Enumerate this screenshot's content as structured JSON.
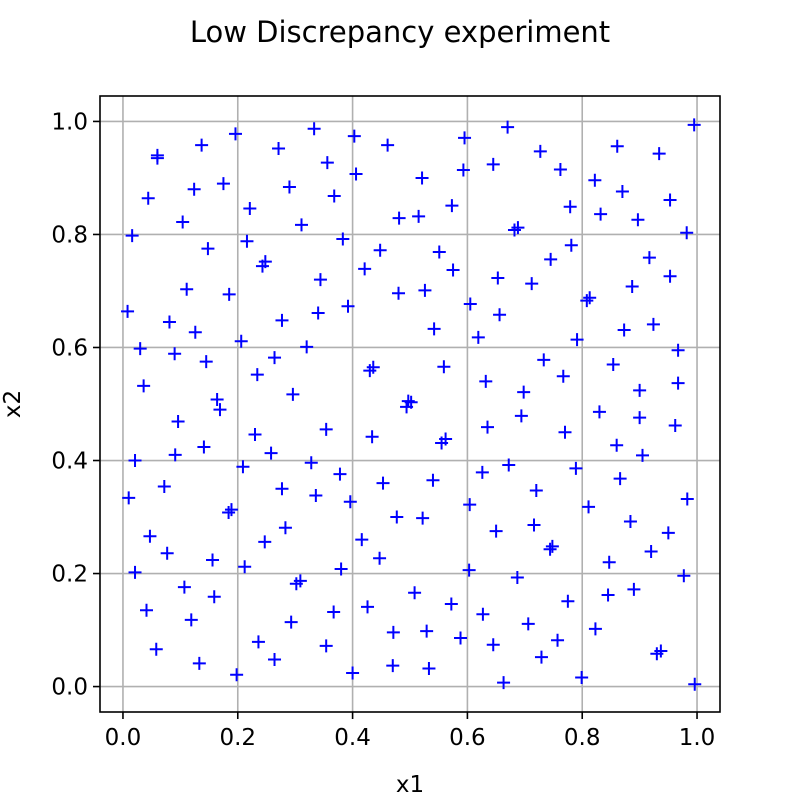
{
  "chart_data": {
    "type": "scatter",
    "title": "Low Discrepancy experiment",
    "xlabel": "x1",
    "ylabel": "x2",
    "xlim": [
      -0.04,
      1.04
    ],
    "ylim": [
      -0.045,
      1.045
    ],
    "xticks": [
      0.0,
      0.2,
      0.4,
      0.6,
      0.8,
      1.0
    ],
    "yticks": [
      0.0,
      0.2,
      0.4,
      0.6,
      0.8,
      1.0
    ],
    "xtick_labels": [
      "0.0",
      "0.2",
      "0.4",
      "0.6",
      "0.8",
      "1.0"
    ],
    "ytick_labels": [
      "0.0",
      "0.2",
      "0.4",
      "0.6",
      "0.8",
      "1.0"
    ],
    "grid": true,
    "marker": "+",
    "color": "#0000ff",
    "points": [
      [
        0.06,
        0.935
      ],
      [
        0.06,
        0.94
      ],
      [
        0.137,
        0.958
      ],
      [
        0.196,
        0.978
      ],
      [
        0.271,
        0.952
      ],
      [
        0.333,
        0.987
      ],
      [
        0.403,
        0.974
      ],
      [
        0.461,
        0.958
      ],
      [
        0.595,
        0.971
      ],
      [
        0.67,
        0.99
      ],
      [
        0.727,
        0.947
      ],
      [
        0.762,
        0.915
      ],
      [
        0.861,
        0.956
      ],
      [
        0.934,
        0.943
      ],
      [
        0.995,
        0.994
      ],
      [
        0.044,
        0.864
      ],
      [
        0.124,
        0.88
      ],
      [
        0.175,
        0.89
      ],
      [
        0.29,
        0.884
      ],
      [
        0.356,
        0.927
      ],
      [
        0.406,
        0.907
      ],
      [
        0.521,
        0.9
      ],
      [
        0.593,
        0.914
      ],
      [
        0.645,
        0.924
      ],
      [
        0.822,
        0.896
      ],
      [
        0.87,
        0.876
      ],
      [
        0.953,
        0.861
      ],
      [
        0.016,
        0.798
      ],
      [
        0.104,
        0.822
      ],
      [
        0.221,
        0.846
      ],
      [
        0.311,
        0.817
      ],
      [
        0.368,
        0.868
      ],
      [
        0.481,
        0.829
      ],
      [
        0.515,
        0.832
      ],
      [
        0.573,
        0.851
      ],
      [
        0.682,
        0.808
      ],
      [
        0.688,
        0.812
      ],
      [
        0.779,
        0.849
      ],
      [
        0.832,
        0.836
      ],
      [
        0.897,
        0.826
      ],
      [
        0.982,
        0.803
      ],
      [
        0.148,
        0.775
      ],
      [
        0.216,
        0.788
      ],
      [
        0.243,
        0.744
      ],
      [
        0.248,
        0.752
      ],
      [
        0.344,
        0.72
      ],
      [
        0.383,
        0.792
      ],
      [
        0.421,
        0.739
      ],
      [
        0.448,
        0.772
      ],
      [
        0.551,
        0.769
      ],
      [
        0.575,
        0.737
      ],
      [
        0.653,
        0.723
      ],
      [
        0.712,
        0.713
      ],
      [
        0.745,
        0.756
      ],
      [
        0.781,
        0.781
      ],
      [
        0.917,
        0.759
      ],
      [
        0.953,
        0.726
      ],
      [
        0.008,
        0.664
      ],
      [
        0.111,
        0.703
      ],
      [
        0.081,
        0.645
      ],
      [
        0.126,
        0.627
      ],
      [
        0.185,
        0.694
      ],
      [
        0.277,
        0.648
      ],
      [
        0.34,
        0.661
      ],
      [
        0.392,
        0.673
      ],
      [
        0.48,
        0.696
      ],
      [
        0.526,
        0.701
      ],
      [
        0.542,
        0.633
      ],
      [
        0.605,
        0.677
      ],
      [
        0.619,
        0.618
      ],
      [
        0.656,
        0.658
      ],
      [
        0.791,
        0.614
      ],
      [
        0.808,
        0.683
      ],
      [
        0.813,
        0.688
      ],
      [
        0.873,
        0.631
      ],
      [
        0.887,
        0.708
      ],
      [
        0.924,
        0.641
      ],
      [
        0.03,
        0.598
      ],
      [
        0.036,
        0.532
      ],
      [
        0.09,
        0.589
      ],
      [
        0.145,
        0.575
      ],
      [
        0.206,
        0.611
      ],
      [
        0.234,
        0.552
      ],
      [
        0.264,
        0.582
      ],
      [
        0.32,
        0.601
      ],
      [
        0.43,
        0.559
      ],
      [
        0.436,
        0.565
      ],
      [
        0.559,
        0.566
      ],
      [
        0.632,
        0.54
      ],
      [
        0.698,
        0.521
      ],
      [
        0.733,
        0.578
      ],
      [
        0.767,
        0.549
      ],
      [
        0.854,
        0.57
      ],
      [
        0.9,
        0.524
      ],
      [
        0.967,
        0.595
      ],
      [
        0.967,
        0.537
      ],
      [
        0.096,
        0.469
      ],
      [
        0.164,
        0.508
      ],
      [
        0.169,
        0.49
      ],
      [
        0.141,
        0.424
      ],
      [
        0.23,
        0.446
      ],
      [
        0.258,
        0.413
      ],
      [
        0.296,
        0.517
      ],
      [
        0.354,
        0.455
      ],
      [
        0.434,
        0.442
      ],
      [
        0.494,
        0.495
      ],
      [
        0.497,
        0.505
      ],
      [
        0.502,
        0.503
      ],
      [
        0.555,
        0.431
      ],
      [
        0.562,
        0.438
      ],
      [
        0.635,
        0.459
      ],
      [
        0.694,
        0.479
      ],
      [
        0.77,
        0.45
      ],
      [
        0.83,
        0.486
      ],
      [
        0.86,
        0.427
      ],
      [
        0.9,
        0.476
      ],
      [
        0.905,
        0.409
      ],
      [
        0.962,
        0.462
      ],
      [
        0.021,
        0.4
      ],
      [
        0.01,
        0.334
      ],
      [
        0.072,
        0.354
      ],
      [
        0.091,
        0.41
      ],
      [
        0.184,
        0.308
      ],
      [
        0.189,
        0.313
      ],
      [
        0.209,
        0.389
      ],
      [
        0.277,
        0.35
      ],
      [
        0.328,
        0.396
      ],
      [
        0.336,
        0.338
      ],
      [
        0.378,
        0.376
      ],
      [
        0.396,
        0.327
      ],
      [
        0.453,
        0.36
      ],
      [
        0.477,
        0.3
      ],
      [
        0.522,
        0.298
      ],
      [
        0.54,
        0.365
      ],
      [
        0.604,
        0.322
      ],
      [
        0.626,
        0.379
      ],
      [
        0.672,
        0.392
      ],
      [
        0.72,
        0.347
      ],
      [
        0.789,
        0.386
      ],
      [
        0.811,
        0.318
      ],
      [
        0.866,
        0.368
      ],
      [
        0.983,
        0.332
      ],
      [
        0.047,
        0.266
      ],
      [
        0.077,
        0.236
      ],
      [
        0.156,
        0.224
      ],
      [
        0.247,
        0.256
      ],
      [
        0.283,
        0.281
      ],
      [
        0.38,
        0.208
      ],
      [
        0.416,
        0.26
      ],
      [
        0.447,
        0.227
      ],
      [
        0.603,
        0.206
      ],
      [
        0.65,
        0.275
      ],
      [
        0.716,
        0.286
      ],
      [
        0.744,
        0.243
      ],
      [
        0.748,
        0.248
      ],
      [
        0.847,
        0.22
      ],
      [
        0.884,
        0.292
      ],
      [
        0.92,
        0.239
      ],
      [
        0.95,
        0.272
      ],
      [
        0.977,
        0.196
      ],
      [
        0.021,
        0.202
      ],
      [
        0.041,
        0.135
      ],
      [
        0.107,
        0.176
      ],
      [
        0.159,
        0.159
      ],
      [
        0.212,
        0.212
      ],
      [
        0.302,
        0.182
      ],
      [
        0.309,
        0.187
      ],
      [
        0.367,
        0.132
      ],
      [
        0.426,
        0.141
      ],
      [
        0.508,
        0.166
      ],
      [
        0.572,
        0.146
      ],
      [
        0.627,
        0.128
      ],
      [
        0.687,
        0.193
      ],
      [
        0.775,
        0.151
      ],
      [
        0.845,
        0.162
      ],
      [
        0.89,
        0.172
      ],
      [
        0.058,
        0.066
      ],
      [
        0.119,
        0.118
      ],
      [
        0.133,
        0.041
      ],
      [
        0.198,
        0.021
      ],
      [
        0.236,
        0.079
      ],
      [
        0.264,
        0.048
      ],
      [
        0.293,
        0.114
      ],
      [
        0.354,
        0.072
      ],
      [
        0.4,
        0.024
      ],
      [
        0.47,
        0.037
      ],
      [
        0.471,
        0.096
      ],
      [
        0.529,
        0.098
      ],
      [
        0.533,
        0.032
      ],
      [
        0.588,
        0.086
      ],
      [
        0.645,
        0.074
      ],
      [
        0.663,
        0.007
      ],
      [
        0.706,
        0.111
      ],
      [
        0.729,
        0.052
      ],
      [
        0.757,
        0.082
      ],
      [
        0.799,
        0.016
      ],
      [
        0.823,
        0.102
      ],
      [
        0.93,
        0.058
      ],
      [
        0.937,
        0.063
      ],
      [
        0.996,
        0.004
      ]
    ]
  }
}
